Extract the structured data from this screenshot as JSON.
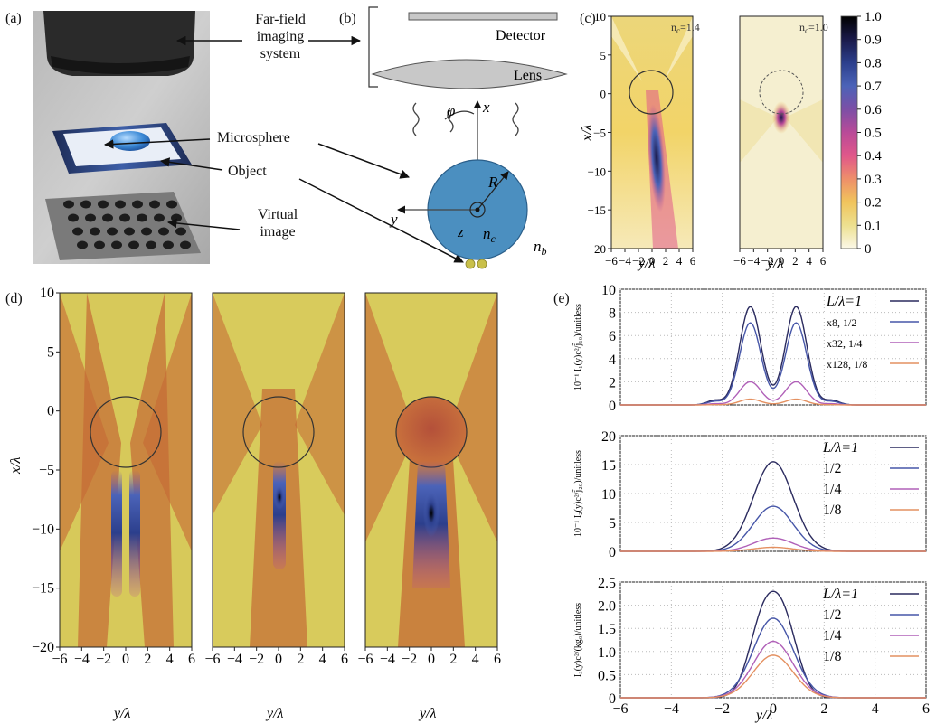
{
  "panels": {
    "a": {
      "label": "(a)",
      "labels": {
        "imaging": [
          "Far-field",
          "imaging",
          "system"
        ],
        "microsphere": "Microsphere",
        "object": "Object",
        "virtual": [
          "Virtual",
          "image"
        ]
      }
    },
    "b": {
      "label": "(b)",
      "detector": "Detector",
      "lens": "Lens",
      "phi": "φ",
      "x": "x",
      "y": "y",
      "z": "z",
      "R": "R",
      "nc": "n",
      "nc_sub": "c",
      "nb": "n",
      "nb_sub": "b"
    },
    "c": {
      "label": "(c)",
      "maps": [
        {
          "annotation": "n",
          "annotation_sub": "c",
          "annotation_val": "=1.4"
        },
        {
          "annotation": "n",
          "annotation_sub": "c",
          "annotation_val": "=1.0"
        }
      ],
      "xlabel": "y/λ",
      "ylabel": "x/λ",
      "xticks": [
        "−6",
        "−4",
        "−2",
        "0",
        "2",
        "4",
        "6"
      ],
      "yticks": [
        "10",
        "5",
        "0",
        "−5",
        "−10",
        "−15",
        "−20"
      ],
      "colorbar_ticks": [
        "1.0",
        "0.9",
        "0.8",
        "0.7",
        "0.6",
        "0.5",
        "0.4",
        "0.3",
        "0.2",
        "0.1",
        "0"
      ],
      "colorbar_colors": [
        "#000000",
        "#1a1a4a",
        "#2c3f8c",
        "#4b63b8",
        "#7c4fa6",
        "#b94a98",
        "#e0578a",
        "#ee8f6a",
        "#f0c45c",
        "#ede08f",
        "#fbf8e8"
      ]
    },
    "d": {
      "label": "(d)",
      "xlabel": "y/λ",
      "ylabel": "x/λ",
      "xticks": [
        "−6",
        "−4",
        "−2",
        "0",
        "2",
        "4",
        "6"
      ],
      "yticks": [
        "10",
        "5",
        "0",
        "−5",
        "−10",
        "−15",
        "−20"
      ]
    },
    "e": {
      "label": "(e)",
      "xlabel": "y/λ",
      "xticks": [
        "−6",
        "−4",
        "−2",
        "0",
        "2",
        "4",
        "6"
      ]
    }
  },
  "chart_data": [
    {
      "type": "line",
      "panel": "e-top",
      "ylabel": "10⁻¹ I₁(y)c²/j̃₁₀)/unitless",
      "xlim": [
        -6,
        6
      ],
      "ylim": [
        0,
        10
      ],
      "yticks": [
        "10",
        "8",
        "6",
        "4",
        "2",
        "0"
      ],
      "grid": true,
      "legend": "top-right",
      "series": [
        {
          "name": "L/λ=1",
          "color": "#2a2a5e",
          "peaks": [
            {
              "x": -0.9,
              "y": 8.5
            },
            {
              "x": 0.9,
              "y": 8.5
            }
          ],
          "side_lobe": 0.4
        },
        {
          "name": "x8, 1/2",
          "color": "#4656a8",
          "peaks": [
            {
              "x": -0.9,
              "y": 7.1
            },
            {
              "x": 0.9,
              "y": 7.1
            }
          ],
          "side_lobe": 0.3
        },
        {
          "name": "x32, 1/4",
          "color": "#b060b8",
          "peaks": [
            {
              "x": -0.9,
              "y": 2.0
            },
            {
              "x": 0.9,
              "y": 2.0
            }
          ],
          "side_lobe": 0.1
        },
        {
          "name": "x128, 1/8",
          "color": "#e49060",
          "peaks": [
            {
              "x": -0.9,
              "y": 0.5
            },
            {
              "x": 0.9,
              "y": 0.5
            }
          ],
          "side_lobe": 0.02
        }
      ]
    },
    {
      "type": "line",
      "panel": "e-middle",
      "ylabel": "10⁻¹ I₂(y)c²/j̃₂₀)/unitless",
      "xlim": [
        -6,
        6
      ],
      "ylim": [
        0,
        20
      ],
      "yticks": [
        "20",
        "15",
        "10",
        "5",
        "0"
      ],
      "grid": true,
      "legend": "top-right",
      "series": [
        {
          "name": "L/λ=1",
          "color": "#2a2a5e",
          "peak": 15.5
        },
        {
          "name": "1/2",
          "color": "#4656a8",
          "peak": 7.8
        },
        {
          "name": "1/4",
          "color": "#b060b8",
          "peak": 2.3
        },
        {
          "name": "1/8",
          "color": "#e49060",
          "peak": 0.7
        }
      ]
    },
    {
      "type": "line",
      "panel": "e-bottom",
      "ylabel": "I₃(y)c²/(kg₀)/unitless",
      "xlim": [
        -6,
        6
      ],
      "ylim": [
        0,
        2.5
      ],
      "yticks": [
        "2.5",
        "2.0",
        "1.5",
        "1.0",
        "0.5",
        "0"
      ],
      "grid": true,
      "legend": "top-right",
      "series": [
        {
          "name": "L/λ=1",
          "color": "#2a2a5e",
          "peaks": [
            {
              "x": -0.35,
              "y": 2.02
            },
            {
              "x": 0.35,
              "y": 2.02
            }
          ]
        },
        {
          "name": "1/2",
          "color": "#4656a8",
          "peak": 1.72
        },
        {
          "name": "1/4",
          "color": "#b060b8",
          "peak": 1.22
        },
        {
          "name": "1/8",
          "color": "#e49060",
          "peak": 0.92
        }
      ]
    }
  ]
}
